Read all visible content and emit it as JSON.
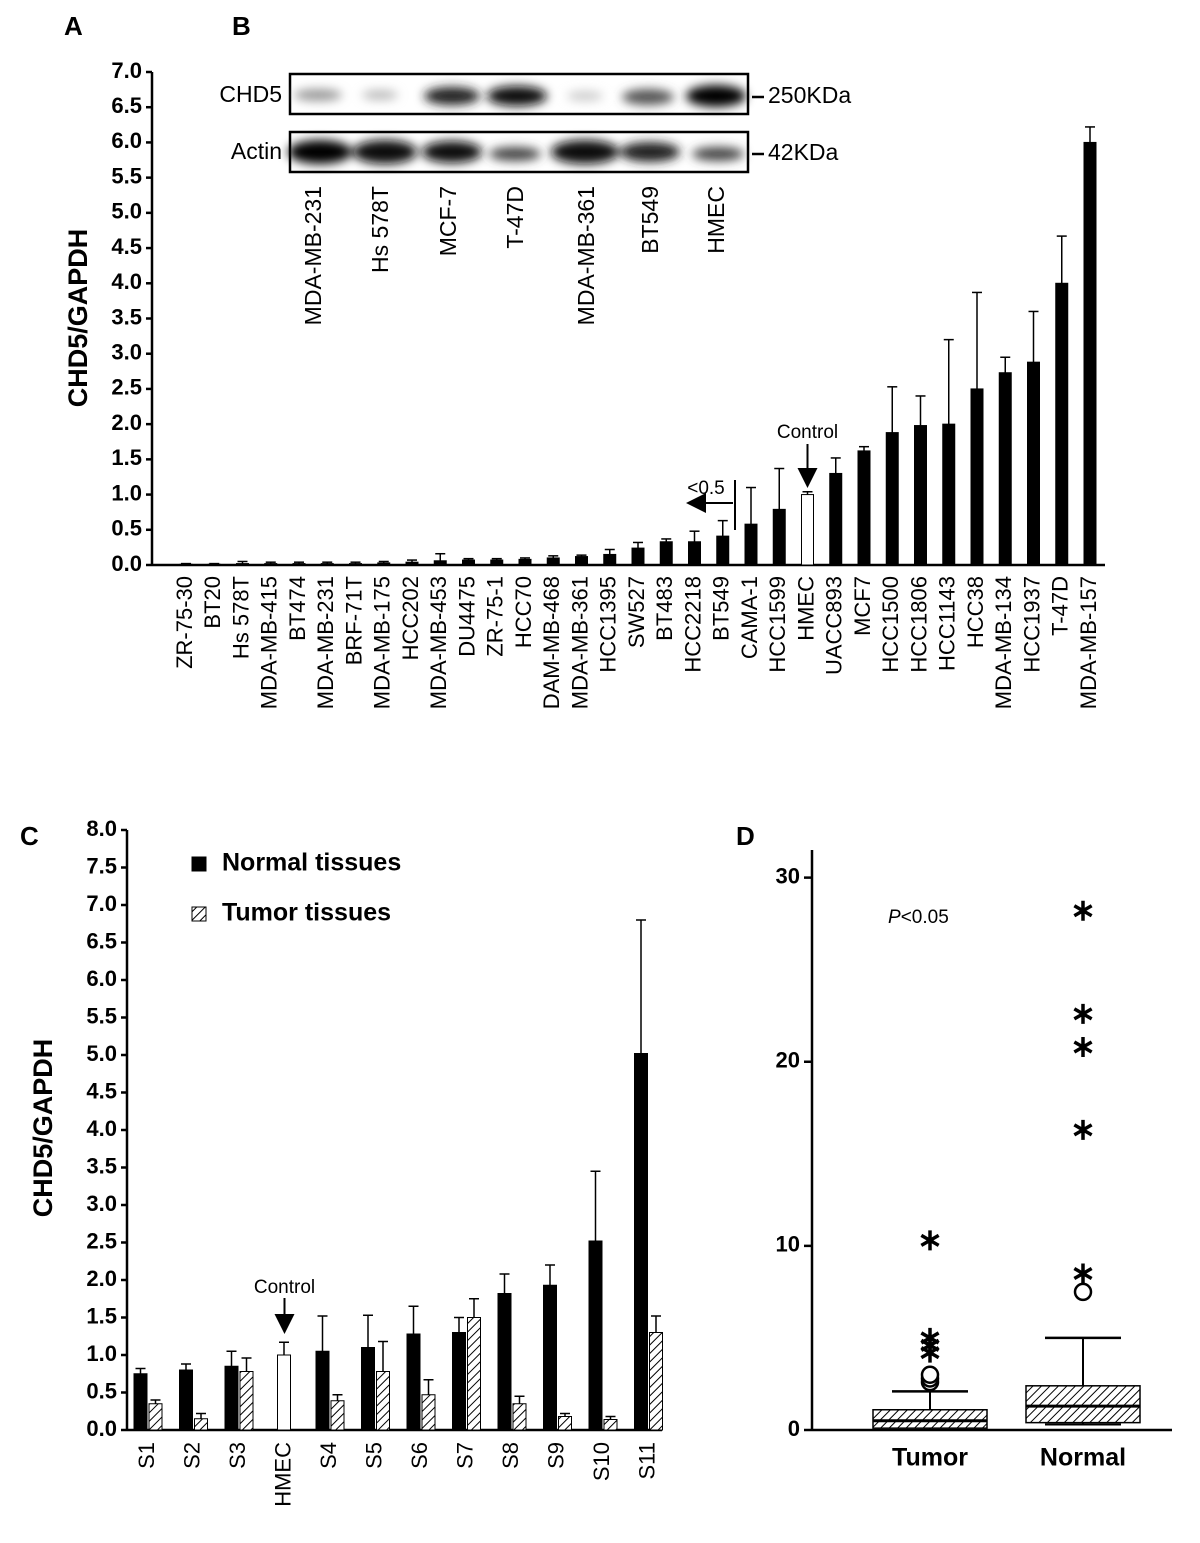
{
  "panels": [
    "A",
    "B",
    "C",
    "D"
  ],
  "blot": {
    "rows": [
      "CHD5",
      "Actin"
    ],
    "sizes": [
      "250KDa",
      "42KDa"
    ],
    "lanes": [
      "MDA-MB-231",
      "Hs 578T",
      "MCF-7",
      "T-47D",
      "MDA-MB-361",
      "BT549",
      "HMEC"
    ]
  },
  "chart_data": [
    {
      "type": "bar",
      "y_label": "CHD5/GAPDH",
      "categories": [
        "ZR-75-30",
        "BT20",
        "Hs 578T",
        "MDA-MB-415",
        "BT474",
        "MDA-MB-231",
        "BRF-71T",
        "MDA-MB-175",
        "HCC202",
        "MDA-MB-453",
        "DU4475",
        "ZR-75-1",
        "HCC70",
        "DAM-MB-468",
        "MDA-MB-361",
        "HCC1395",
        "SW527",
        "BT483",
        "HCC2218",
        "BT549",
        "CAMA-1",
        "HCC1599",
        "HMEC",
        "UACC893",
        "MCF7",
        "HCC1500",
        "HCC1806",
        "HCC1143",
        "HCC38",
        "MDA-MB-134",
        "HCC1937",
        "T-47D",
        "MDA-MB-157"
      ],
      "values": [
        0.01,
        0.01,
        0.02,
        0.02,
        0.02,
        0.02,
        0.02,
        0.03,
        0.04,
        0.06,
        0.07,
        0.07,
        0.08,
        0.1,
        0.12,
        0.15,
        0.24,
        0.33,
        0.33,
        0.41,
        0.58,
        0.79,
        1.0,
        1.3,
        1.62,
        1.88,
        1.98,
        2.0,
        2.5,
        2.73,
        2.88,
        4.0,
        6.0
      ],
      "errors": [
        0.01,
        0.01,
        0.03,
        0.02,
        0.02,
        0.02,
        0.02,
        0.02,
        0.03,
        0.1,
        0.02,
        0.02,
        0.02,
        0.03,
        0.02,
        0.07,
        0.08,
        0.04,
        0.15,
        0.22,
        0.52,
        0.58,
        0.04,
        0.22,
        0.06,
        0.65,
        0.42,
        1.2,
        1.37,
        0.22,
        0.72,
        0.67,
        0.22
      ],
      "colors": [
        "#000000",
        "#000000",
        "#000000",
        "#000000",
        "#000000",
        "#000000",
        "#000000",
        "#000000",
        "#000000",
        "#000000",
        "#000000",
        "#000000",
        "#000000",
        "#000000",
        "#000000",
        "#000000",
        "#000000",
        "#000000",
        "#000000",
        "#000000",
        "#000000",
        "#000000",
        "#ffffff",
        "#000000",
        "#000000",
        "#000000",
        "#000000",
        "#000000",
        "#000000",
        "#000000",
        "#000000",
        "#000000",
        "#000000"
      ],
      "ylim": [
        0,
        7
      ],
      "yticks": [
        {
          "value": 0,
          "label": "0.0"
        },
        0.5,
        {
          "value": 1,
          "label": "1.0"
        },
        1.5,
        {
          "value": 2,
          "label": "2.0"
        },
        2.5,
        {
          "value": 3,
          "label": "3.0"
        },
        3.5,
        {
          "value": 4,
          "label": "4.0"
        },
        4.5,
        {
          "value": 5,
          "label": "5.0"
        },
        5.5,
        {
          "value": 6,
          "label": "6.0"
        },
        6.5,
        {
          "value": 7,
          "label": "7.0"
        }
      ],
      "annotations": [
        "Control",
        "<0.5"
      ]
    },
    {
      "type": "grouped_bar",
      "y_label": "CHD5/GAPDH",
      "categories": [
        "S1",
        "S2",
        "S3",
        "HMEC",
        "S4",
        "S5",
        "S6",
        "S7",
        "S8",
        "S9",
        "S10",
        "S11"
      ],
      "series": [
        {
          "name": "Normal tissues",
          "color": "#000000",
          "colors": [
            "#000000",
            "#000000",
            "#000000",
            "#ffffff",
            "#000000",
            "#000000",
            "#000000",
            "#000000",
            "#000000",
            "#000000",
            "#000000",
            "#000000"
          ],
          "values": [
            0.75,
            0.8,
            0.85,
            1.0,
            1.05,
            1.1,
            1.28,
            1.3,
            1.82,
            1.93,
            2.52,
            5.02
          ],
          "errors": [
            0.07,
            0.08,
            0.2,
            0.17,
            0.47,
            0.43,
            0.37,
            0.2,
            0.26,
            0.27,
            0.93,
            1.78
          ]
        },
        {
          "name": "Tumor tissues",
          "color": "#ffffff",
          "hatch": true,
          "values": [
            0.35,
            0.15,
            0.78,
            null,
            0.39,
            0.78,
            0.47,
            1.5,
            0.35,
            0.18,
            0.14,
            1.3
          ],
          "errors": [
            0.05,
            0.07,
            0.18,
            null,
            0.08,
            0.4,
            0.2,
            0.25,
            0.1,
            0.04,
            0.04,
            0.22
          ]
        }
      ],
      "ylim": [
        0,
        8
      ],
      "yticks": [
        {
          "value": 0,
          "label": "0.0"
        },
        0.5,
        {
          "value": 1,
          "label": "1.0"
        },
        1.5,
        {
          "value": 2,
          "label": "2.0"
        },
        2.5,
        {
          "value": 3,
          "label": "3.0"
        },
        3.5,
        {
          "value": 4,
          "label": "4.0"
        },
        4.5,
        {
          "value": 5,
          "label": "5.0"
        },
        5.5,
        {
          "value": 6,
          "label": "6.0"
        },
        6.5,
        {
          "value": 7,
          "label": "7.0"
        },
        7.5,
        {
          "value": 8,
          "label": "8.0"
        }
      ],
      "annotations": [
        "Control"
      ]
    },
    {
      "type": "box",
      "categories": [
        "Tumor",
        "Normal"
      ],
      "boxes": [
        {
          "whisker_low": 0,
          "q1": 0.1,
          "median": 0.5,
          "q3": 1.1,
          "whisker_high": 2.1,
          "outliers": [
            2.6,
            2.8,
            3.0
          ],
          "extremes": [
            4.2,
            4.6,
            5.0,
            10.3
          ]
        },
        {
          "whisker_low": 0.3,
          "q1": 0.4,
          "median": 1.3,
          "q3": 2.4,
          "whisker_high": 5.0,
          "outliers": [
            7.5
          ],
          "extremes": [
            8.5,
            16.3,
            20.8,
            22.6,
            28.2
          ]
        }
      ],
      "ylim": [
        0,
        31.5
      ],
      "yticks": [
        0,
        10,
        20,
        30
      ],
      "annotation_italic": "P",
      "annotation": "<0.05"
    }
  ]
}
